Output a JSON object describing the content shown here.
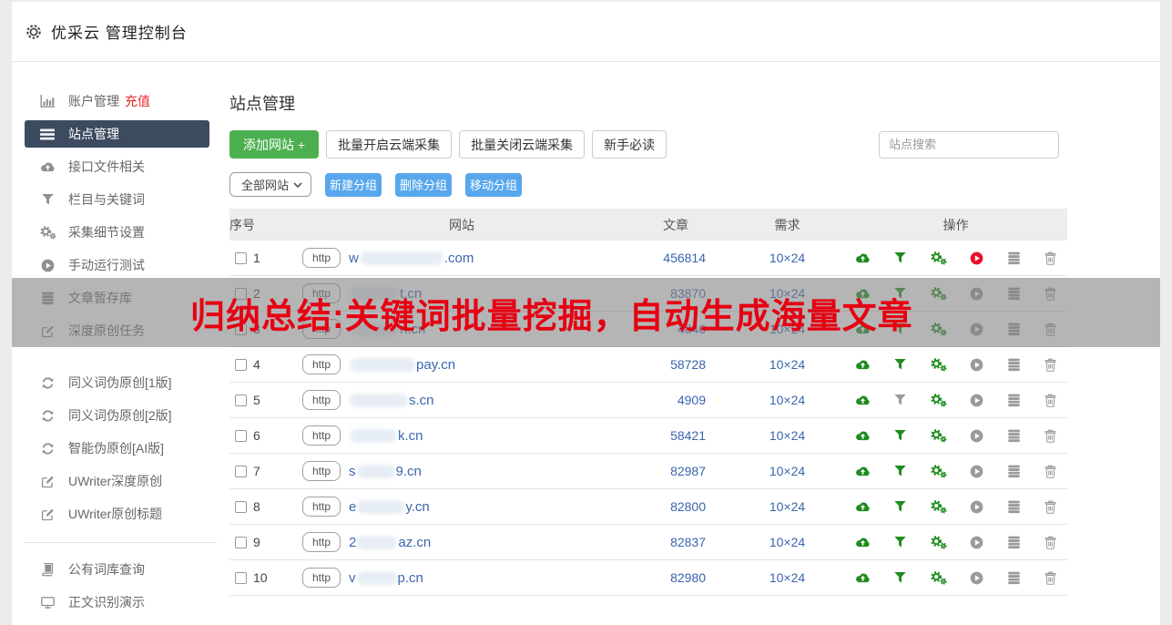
{
  "colors": {
    "icon_green": "#1e8c1e",
    "icon_gray": "#9a9a9a",
    "icon_red": "#e8112d",
    "link_blue": "#3a65ae",
    "accent_green": "#4cb050",
    "accent_blue": "#58a7ec",
    "side_selected": "#3d4b60",
    "red_badge": "#e52b2b",
    "overlay_text": "#e60012",
    "overlay_bg": "rgba(128,128,128,0.58)"
  },
  "header": {
    "icon": "gear-icon",
    "title": "优采云 管理控制台"
  },
  "sidebar": {
    "items": [
      {
        "icon": "bar-chart-icon",
        "label": "账户管理",
        "badge": "充值"
      },
      {
        "icon": "list-icon",
        "label": "站点管理",
        "selected": true
      },
      {
        "icon": "cloud-upload-icon",
        "label": "接口文件相关"
      },
      {
        "icon": "filter-icon",
        "label": "栏目与关键词"
      },
      {
        "icon": "gears-icon",
        "label": "采集细节设置"
      },
      {
        "icon": "play-icon",
        "label": "手动运行测试"
      },
      {
        "icon": "database-icon",
        "label": "文章暂存库"
      },
      {
        "icon": "edit-icon",
        "label": "深度原创任务"
      },
      {
        "type": "gap"
      },
      {
        "icon": "refresh-icon",
        "label": "同义词伪原创[1版]"
      },
      {
        "icon": "refresh-icon",
        "label": "同义词伪原创[2版]"
      },
      {
        "icon": "refresh-icon",
        "label": "智能伪原创[AI版]"
      },
      {
        "icon": "edit-icon",
        "label": "UWriter深度原创"
      },
      {
        "icon": "edit-icon",
        "label": "UWriter原创标题"
      },
      {
        "type": "divider"
      },
      {
        "icon": "book-icon",
        "label": "公有词库查询"
      },
      {
        "icon": "monitor-icon",
        "label": "正文识别演示"
      }
    ]
  },
  "main": {
    "title": "站点管理",
    "toolbar": {
      "add_site": "添加网站 +",
      "batch_open": "批量开启云端采集",
      "batch_close": "批量关闭云端采集",
      "newbie_guide": "新手必读",
      "search_placeholder": "站点搜索",
      "group_select": "全部网站",
      "group_select_icon": "chevron-down-icon",
      "new_group": "新建分组",
      "delete_group": "删除分组",
      "move_group": "移动分组"
    },
    "table": {
      "headers": [
        "序号",
        "网站",
        "文章",
        "需求",
        "操作"
      ],
      "http_label": "http",
      "rows": [
        {
          "index": "1",
          "domain_prefix": "w",
          "domain_suffix": ".com",
          "blob_w": 92,
          "articles": "456814",
          "demand": "10×24",
          "actions": [
            [
              "cloud-upload-icon",
              "green"
            ],
            [
              "filter-icon",
              "green"
            ],
            [
              "gears-icon",
              "green"
            ],
            [
              "play-icon",
              "red"
            ],
            [
              "database-icon",
              "gray"
            ],
            [
              "trash-icon",
              "gray"
            ]
          ]
        },
        {
          "index": "2",
          "domain_prefix": "",
          "domain_suffix": "t.cn",
          "blob_w": 54,
          "articles": "83870",
          "demand": "10×24",
          "actions": [
            [
              "cloud-upload-icon",
              "green"
            ],
            [
              "filter-icon",
              "green"
            ],
            [
              "gears-icon",
              "green"
            ],
            [
              "play-icon",
              "gray"
            ],
            [
              "database-icon",
              "gray"
            ],
            [
              "trash-icon",
              "gray"
            ]
          ]
        },
        {
          "index": "3",
          "domain_prefix": "",
          "domain_suffix": "n.cn",
          "blob_w": 54,
          "articles": "4846",
          "demand": "10×24",
          "actions": [
            [
              "cloud-upload-icon",
              "green"
            ],
            [
              "filter-icon",
              "green"
            ],
            [
              "gears-icon",
              "green"
            ],
            [
              "play-icon",
              "gray"
            ],
            [
              "database-icon",
              "gray"
            ],
            [
              "trash-icon",
              "gray"
            ]
          ]
        },
        {
          "index": "4",
          "domain_prefix": "",
          "domain_suffix": "pay.cn",
          "blob_w": 72,
          "articles": "58728",
          "demand": "10×24",
          "actions": [
            [
              "cloud-upload-icon",
              "green"
            ],
            [
              "filter-icon",
              "green"
            ],
            [
              "gears-icon",
              "green"
            ],
            [
              "play-icon",
              "gray"
            ],
            [
              "database-icon",
              "gray"
            ],
            [
              "trash-icon",
              "gray"
            ]
          ]
        },
        {
          "index": "5",
          "domain_prefix": "",
          "domain_suffix": "s.cn",
          "blob_w": 64,
          "articles": "4909",
          "demand": "10×24",
          "actions": [
            [
              "cloud-upload-icon",
              "green"
            ],
            [
              "filter-icon",
              "gray"
            ],
            [
              "gears-icon",
              "green"
            ],
            [
              "play-icon",
              "gray"
            ],
            [
              "database-icon",
              "gray"
            ],
            [
              "trash-icon",
              "gray"
            ]
          ]
        },
        {
          "index": "6",
          "domain_prefix": "",
          "domain_suffix": "k.cn",
          "blob_w": 52,
          "articles": "58421",
          "demand": "10×24",
          "actions": [
            [
              "cloud-upload-icon",
              "green"
            ],
            [
              "filter-icon",
              "green"
            ],
            [
              "gears-icon",
              "green"
            ],
            [
              "play-icon",
              "gray"
            ],
            [
              "database-icon",
              "gray"
            ],
            [
              "trash-icon",
              "gray"
            ]
          ]
        },
        {
          "index": "7",
          "domain_prefix": "s",
          "domain_suffix": "9.cn",
          "blob_w": 42,
          "articles": "82987",
          "demand": "10×24",
          "actions": [
            [
              "cloud-upload-icon",
              "green"
            ],
            [
              "filter-icon",
              "green"
            ],
            [
              "gears-icon",
              "green"
            ],
            [
              "play-icon",
              "gray"
            ],
            [
              "database-icon",
              "gray"
            ],
            [
              "trash-icon",
              "gray"
            ]
          ]
        },
        {
          "index": "8",
          "domain_prefix": "e",
          "domain_suffix": "y.cn",
          "blob_w": 52,
          "articles": "82800",
          "demand": "10×24",
          "actions": [
            [
              "cloud-upload-icon",
              "green"
            ],
            [
              "filter-icon",
              "green"
            ],
            [
              "gears-icon",
              "green"
            ],
            [
              "play-icon",
              "gray"
            ],
            [
              "database-icon",
              "gray"
            ],
            [
              "trash-icon",
              "gray"
            ]
          ]
        },
        {
          "index": "9",
          "domain_prefix": "2",
          "domain_suffix": "az.cn",
          "blob_w": 44,
          "articles": "82837",
          "demand": "10×24",
          "actions": [
            [
              "cloud-upload-icon",
              "green"
            ],
            [
              "filter-icon",
              "green"
            ],
            [
              "gears-icon",
              "green"
            ],
            [
              "play-icon",
              "gray"
            ],
            [
              "database-icon",
              "gray"
            ],
            [
              "trash-icon",
              "gray"
            ]
          ]
        },
        {
          "index": "10",
          "domain_prefix": "v",
          "domain_suffix": "p.cn",
          "blob_w": 44,
          "articles": "82980",
          "demand": "10×24",
          "actions": [
            [
              "cloud-upload-icon",
              "green"
            ],
            [
              "filter-icon",
              "green"
            ],
            [
              "gears-icon",
              "green"
            ],
            [
              "play-icon",
              "gray"
            ],
            [
              "database-icon",
              "gray"
            ],
            [
              "trash-icon",
              "gray"
            ]
          ]
        }
      ]
    }
  },
  "overlay": {
    "text": "归纳总结:关键词批量挖掘，自动生成海量文章"
  }
}
